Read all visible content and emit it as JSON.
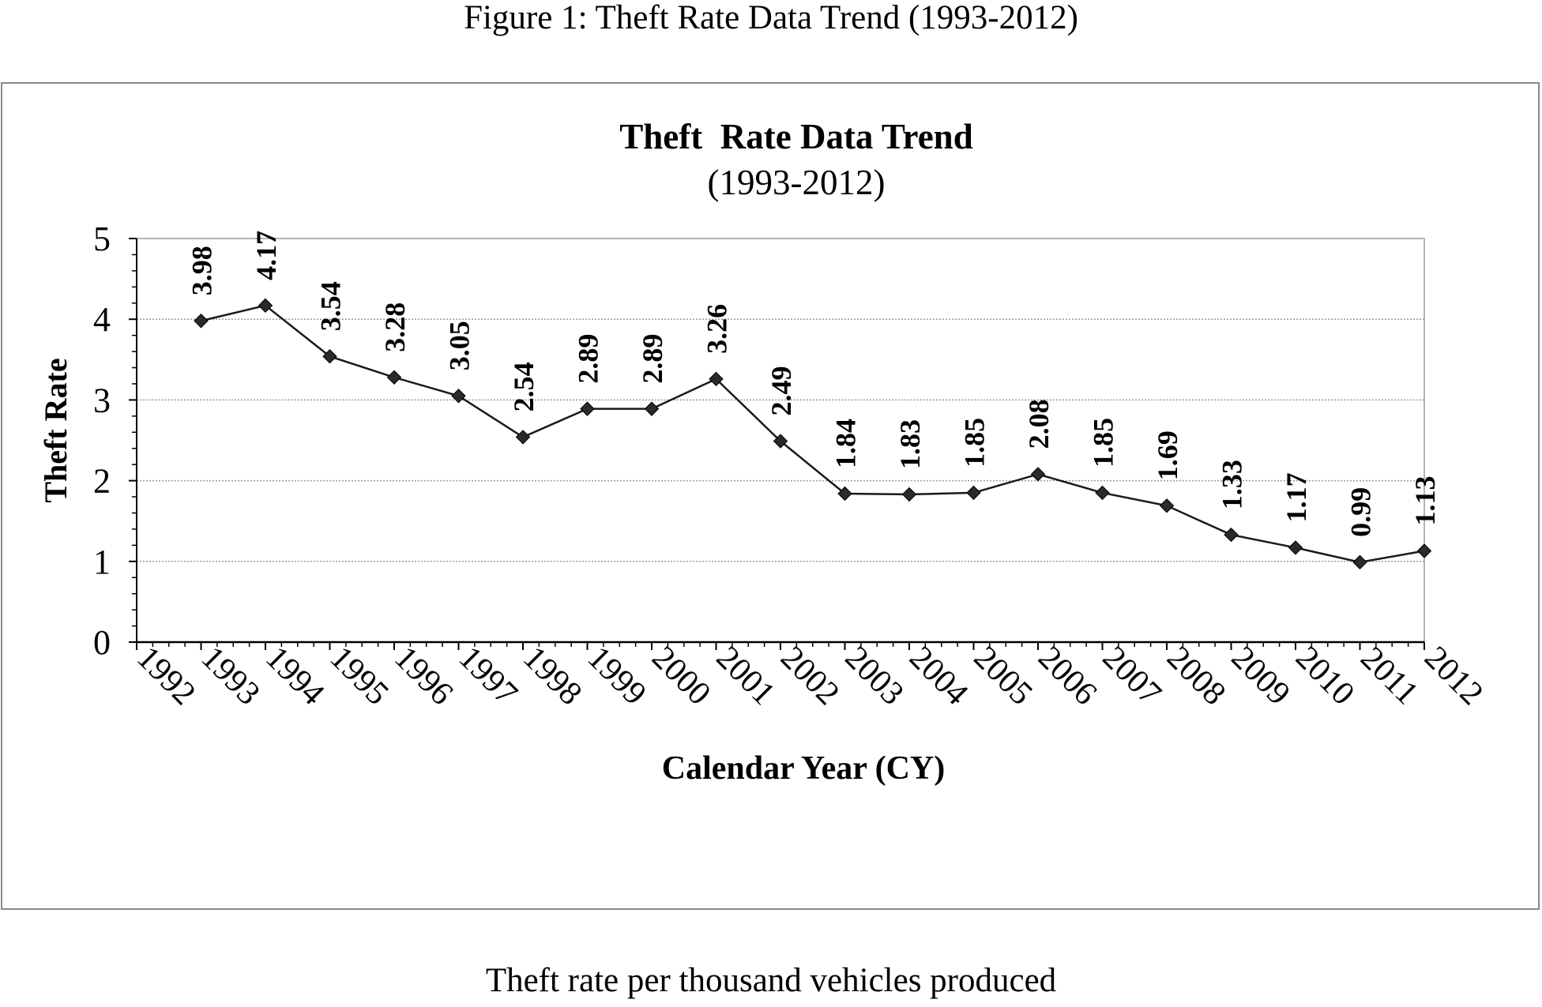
{
  "figure_caption": "Figure 1: Theft Rate Data Trend (1993-2012)",
  "footer_note": "Theft rate per thousand vehicles produced",
  "chart_data": {
    "type": "line",
    "title": "Theft  Rate Data Trend",
    "subtitle": "(1993-2012)",
    "xlabel": "Calendar Year (CY)",
    "ylabel": "Theft Rate",
    "x_ticks": [
      "1992",
      "1993",
      "1994",
      "1995",
      "1996",
      "1997",
      "1998",
      "1999",
      "2000",
      "2001",
      "2002",
      "2003",
      "2004",
      "2005",
      "2006",
      "2007",
      "2008",
      "2009",
      "2010",
      "2011",
      "2012"
    ],
    "ylim": [
      0,
      5
    ],
    "y_ticks": [
      0,
      1,
      2,
      3,
      4,
      5
    ],
    "grid": "horizontal dotted",
    "marker": "diamond",
    "series": [
      {
        "name": "Theft Rate",
        "x": [
          "1993",
          "1994",
          "1995",
          "1996",
          "1997",
          "1998",
          "1999",
          "2000",
          "2001",
          "2002",
          "2003",
          "2004",
          "2005",
          "2006",
          "2007",
          "2008",
          "2009",
          "2010",
          "2011",
          "2012"
        ],
        "values": [
          3.98,
          4.17,
          3.54,
          3.28,
          3.05,
          2.54,
          2.89,
          2.89,
          3.26,
          2.49,
          1.84,
          1.83,
          1.85,
          2.08,
          1.85,
          1.69,
          1.33,
          1.17,
          0.99,
          1.13
        ],
        "labels": [
          "3.98",
          "4.17",
          "3.54",
          "3.28",
          "3.05",
          "2.54",
          "2.89",
          "2.89",
          "3.26",
          "2.49",
          "1.84",
          "1.83",
          "1.85",
          "2.08",
          "1.85",
          "1.69",
          "1.33",
          "1.17",
          "0.99",
          "1.13"
        ]
      }
    ],
    "colors": {
      "line": "#1a1a1a",
      "marker": "#2a2a2a",
      "grid": "#9a9a9a",
      "frame": "#8a8a8a"
    }
  }
}
